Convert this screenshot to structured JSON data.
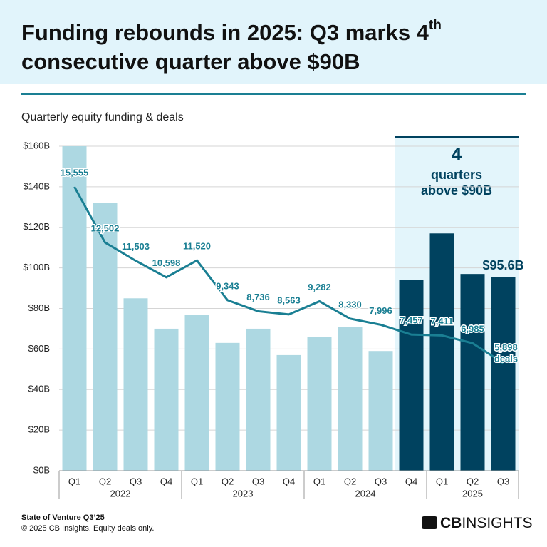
{
  "chart_data": {
    "type": "bar_line",
    "title": {
      "main": "Funding rebounds in 2025: Q3 marks 4",
      "sup": "th",
      "rest": "consecutive quarter above $90B"
    },
    "subtitle": "Quarterly equity funding & deals",
    "groups": [
      {
        "label": "2022",
        "categories": [
          "Q1",
          "Q2",
          "Q3",
          "Q4"
        ]
      },
      {
        "label": "2023",
        "categories": [
          "Q1",
          "Q2",
          "Q3",
          "Q4"
        ]
      },
      {
        "label": "2024",
        "categories": [
          "Q1",
          "Q2",
          "Q3",
          "Q4"
        ]
      },
      {
        "label": "2025",
        "categories": [
          "Q1",
          "Q2",
          "Q3"
        ]
      }
    ],
    "series": [
      {
        "name": "Equity funding",
        "colors": [
          "#add8e2",
          "#add8e2",
          "#add8e2",
          "#add8e2",
          "#add8e2",
          "#add8e2",
          "#add8e2",
          "#add8e2",
          "#add8e2",
          "#add8e2",
          "#add8e2",
          "#00425f",
          "#00425f",
          "#00425f",
          "#00425f"
        ],
        "values": [
          160,
          132,
          85,
          70,
          77,
          63,
          70,
          57,
          66,
          71,
          59,
          94,
          117,
          97,
          95.6
        ],
        "value_labels": [
          null,
          null,
          null,
          null,
          null,
          null,
          null,
          null,
          null,
          null,
          null,
          null,
          null,
          null,
          "$95.6B"
        ]
      },
      {
        "name": "deals",
        "color": "#1a7f93",
        "axis": "y2",
        "values": [
          15555,
          12502,
          11503,
          10598,
          11520,
          9343,
          8736,
          8563,
          9282,
          8330,
          7996,
          7457,
          7411,
          6985,
          5898
        ],
        "value_labels": [
          "15,555",
          "12,502",
          "11,503",
          "10,598",
          "11,520",
          "9,343",
          "8,736",
          "8,563",
          "9,282",
          "8,330",
          "7,996",
          "7,457",
          "7,411",
          "6,985",
          "5,898"
        ]
      }
    ],
    "ylim": [
      0,
      160
    ],
    "yticks": [
      {
        "value": 0,
        "label": "$0B"
      },
      {
        "value": 20,
        "label": "$20B"
      },
      {
        "value": 40,
        "label": "$40B"
      },
      {
        "value": 60,
        "label": "$60B"
      },
      {
        "value": 80,
        "label": "$80B"
      },
      {
        "value": 100,
        "label": "$100B"
      },
      {
        "value": 120,
        "label": "$120B"
      },
      {
        "value": 140,
        "label": "$140B"
      },
      {
        "value": 160,
        "label": "$160B"
      }
    ],
    "y2lim": [
      0,
      17780
    ],
    "grid": true,
    "highlight": {
      "number": "4",
      "lines": [
        "quarters",
        "above $90B"
      ]
    },
    "source": "State of Venture Q3’25",
    "note": "© 2025 CB Insights. Equity deals only.",
    "logo": [
      "CB",
      "INSIGHTS"
    ]
  }
}
